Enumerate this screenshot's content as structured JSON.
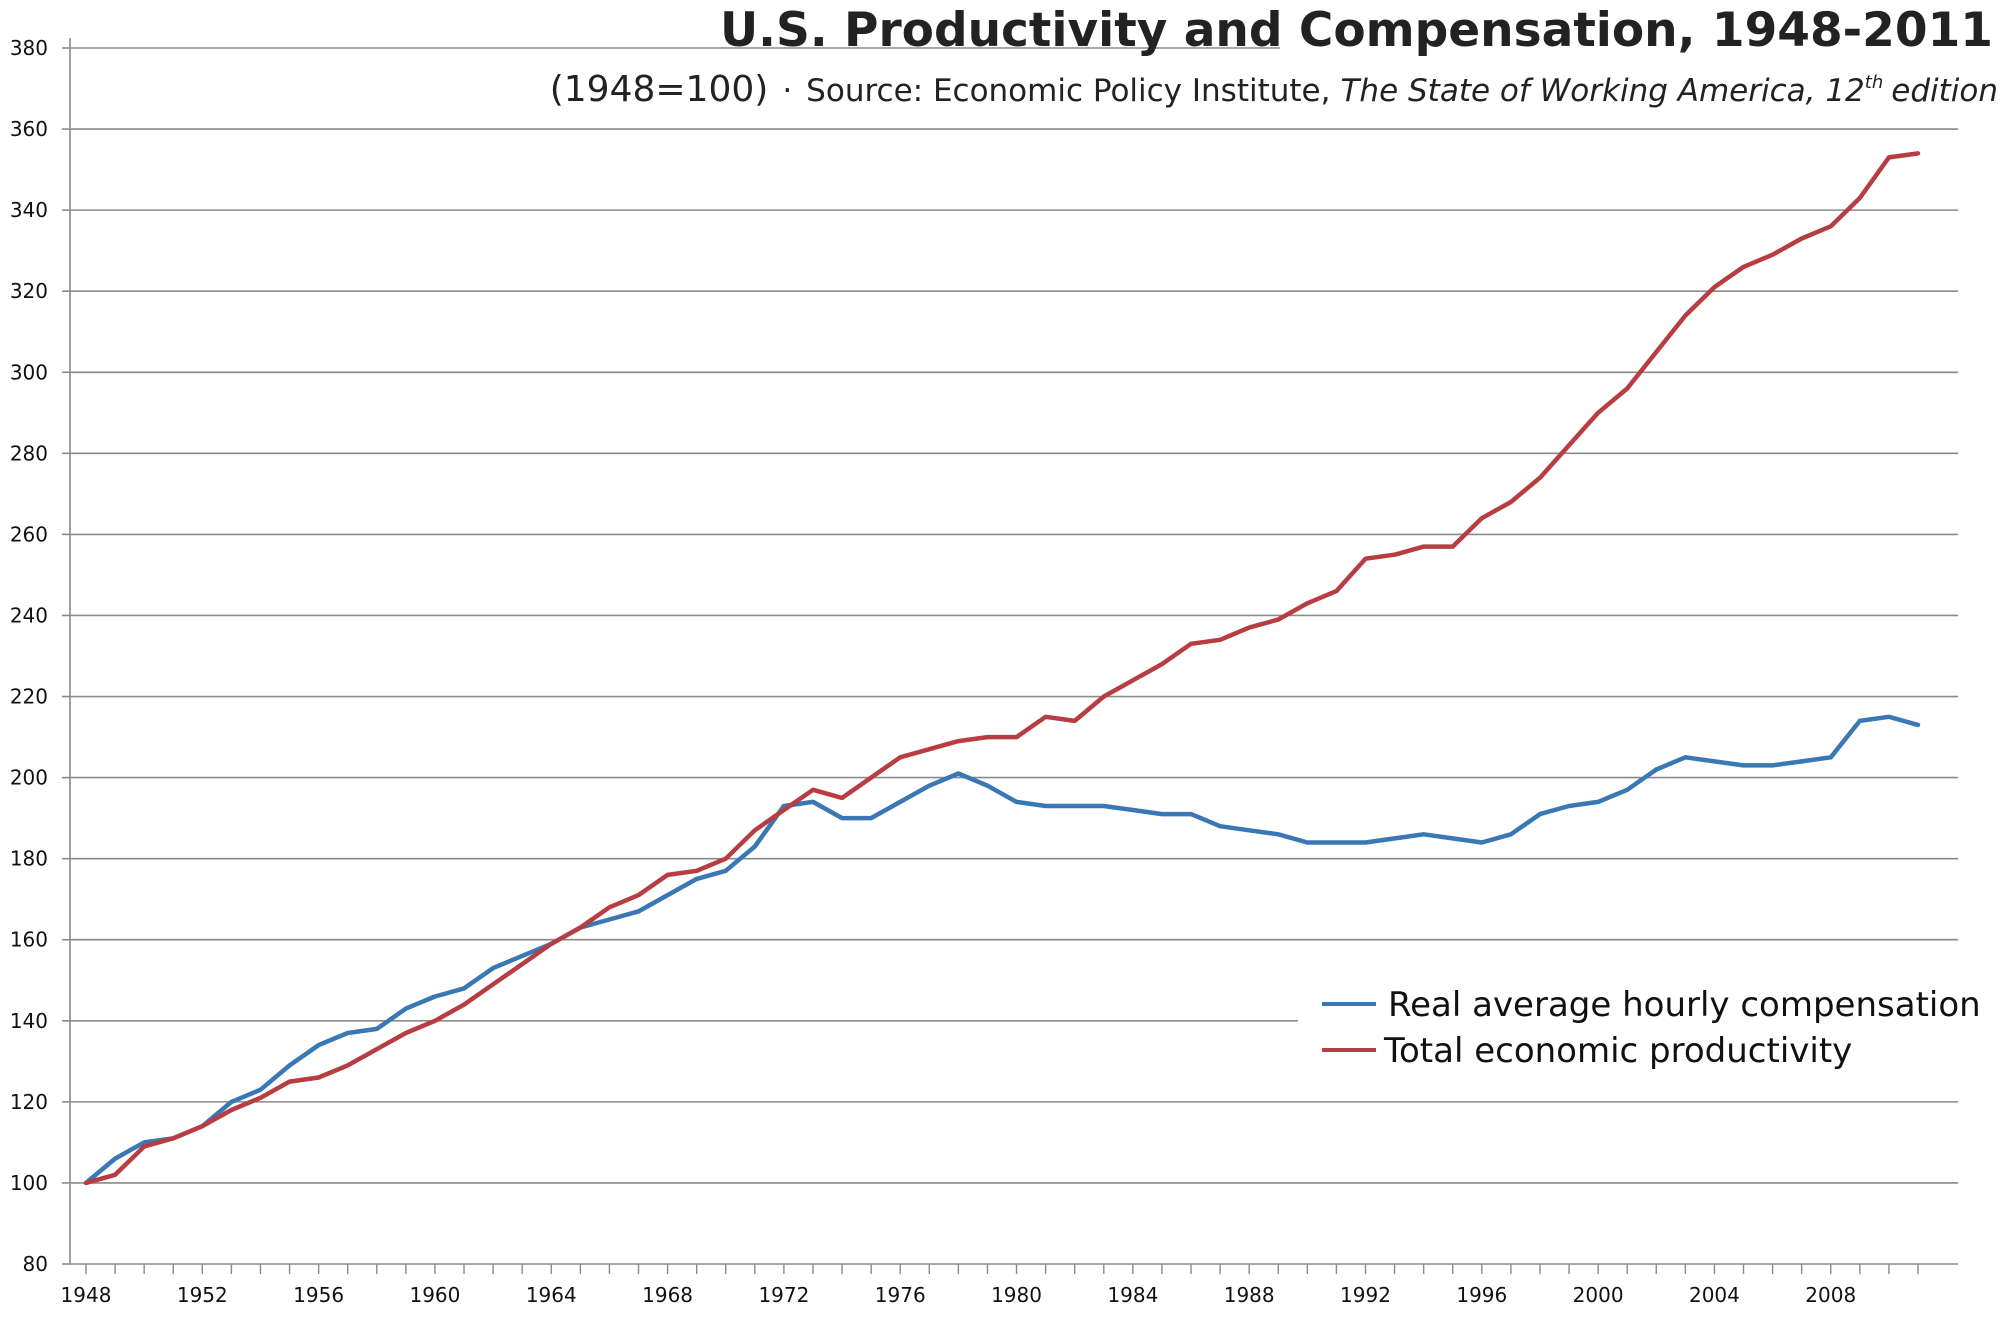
{
  "chart_data": {
    "type": "line",
    "title": "U.S. Productivity and Compensation, 1948-2011",
    "subtitle": {
      "prefix": "(1948=100)",
      "dot": "·",
      "source_label": "Source: Economic Policy Institute,",
      "source_italic": "The State of Working America, 12",
      "sup": "th",
      "suffix": "edition"
    },
    "xlabel": "",
    "ylabel": "",
    "xlim": [
      1948,
      2011
    ],
    "ylim": [
      80,
      380
    ],
    "grid": "horizontal",
    "legend_position": "bottom-right",
    "y_ticks": [
      "80",
      "100",
      "120",
      "140",
      "160",
      "180",
      "200",
      "220",
      "240",
      "260",
      "280",
      "300",
      "320",
      "340",
      "360",
      "380"
    ],
    "x_ticks": [
      "1948",
      "1952",
      "1956",
      "1960",
      "1964",
      "1968",
      "1972",
      "1976",
      "1980",
      "1984",
      "1988",
      "1992",
      "1996",
      "2000",
      "2004",
      "2008"
    ],
    "x": [
      1948,
      1949,
      1950,
      1951,
      1952,
      1953,
      1954,
      1955,
      1956,
      1957,
      1958,
      1959,
      1960,
      1961,
      1962,
      1963,
      1964,
      1965,
      1966,
      1967,
      1968,
      1969,
      1970,
      1971,
      1972,
      1973,
      1974,
      1975,
      1976,
      1977,
      1978,
      1979,
      1980,
      1981,
      1982,
      1983,
      1984,
      1985,
      1986,
      1987,
      1988,
      1989,
      1990,
      1991,
      1992,
      1993,
      1994,
      1995,
      1996,
      1997,
      1998,
      1999,
      2000,
      2001,
      2002,
      2003,
      2004,
      2005,
      2006,
      2007,
      2008,
      2009,
      2010,
      2011
    ],
    "series": [
      {
        "name": "Real average hourly compensation",
        "color": "#3a78b5",
        "values": [
          100,
          106,
          110,
          111,
          114,
          120,
          123,
          129,
          134,
          137,
          138,
          143,
          146,
          148,
          153,
          156,
          159,
          163,
          165,
          167,
          171,
          175,
          177,
          183,
          193,
          194,
          190,
          190,
          194,
          198,
          201,
          198,
          194,
          193,
          193,
          193,
          192,
          191,
          191,
          188,
          187,
          186,
          184,
          184,
          184,
          185,
          186,
          185,
          184,
          186,
          191,
          193,
          194,
          197,
          202,
          205,
          204,
          203,
          203,
          204,
          205,
          214,
          215,
          213
        ]
      },
      {
        "name": "Total economic productivity",
        "color": "#b83d43",
        "values": [
          100,
          102,
          109,
          111,
          114,
          118,
          121,
          125,
          126,
          129,
          133,
          137,
          140,
          144,
          149,
          154,
          159,
          163,
          168,
          171,
          176,
          177,
          180,
          187,
          192,
          197,
          195,
          200,
          205,
          207,
          209,
          210,
          210,
          215,
          214,
          220,
          224,
          228,
          233,
          234,
          237,
          239,
          243,
          246,
          254,
          255,
          257,
          257,
          264,
          268,
          274,
          282,
          290,
          296,
          305,
          314,
          321,
          326,
          329,
          333,
          336,
          343,
          353,
          354
        ]
      }
    ]
  }
}
